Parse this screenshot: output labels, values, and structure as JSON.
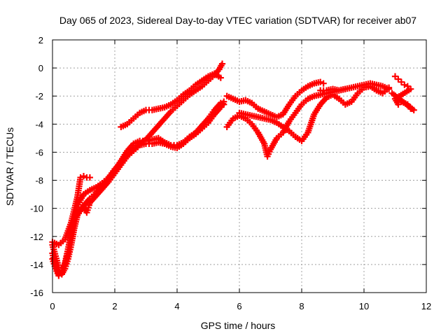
{
  "chart_data": {
    "type": "scatter",
    "title": "Day 065 of 2023, Sidereal Day-to-day VTEC variation (SDTVAR) for receiver ab07",
    "xlabel": "GPS time / hours",
    "ylabel": "SDTVAR / TECUs",
    "xlim": [
      0,
      12
    ],
    "ylim": [
      -16,
      2
    ],
    "xticks": [
      0,
      2,
      4,
      6,
      8,
      10,
      12
    ],
    "yticks": [
      -16,
      -14,
      -12,
      -10,
      -8,
      -6,
      -4,
      -2,
      0,
      2
    ],
    "grid": true,
    "legend": "none",
    "marker": "plus",
    "color": "#ff0000",
    "series": [
      {
        "values": [
          [
            0.0,
            -12.6
          ],
          [
            0.1,
            -13.4
          ],
          [
            0.2,
            -14.2
          ],
          [
            0.3,
            -14.4
          ],
          [
            0.4,
            -14.0
          ],
          [
            0.5,
            -13.2
          ],
          [
            0.6,
            -12.0
          ],
          [
            0.7,
            -10.8
          ],
          [
            0.8,
            -9.9
          ],
          [
            0.9,
            -9.4
          ],
          [
            1.0,
            -9.0
          ],
          [
            1.2,
            -8.7
          ],
          [
            1.4,
            -8.5
          ],
          [
            1.6,
            -8.2
          ],
          [
            1.8,
            -7.8
          ],
          [
            2.0,
            -7.2
          ],
          [
            2.2,
            -6.7
          ],
          [
            2.4,
            -6.2
          ],
          [
            2.6,
            -5.8
          ],
          [
            2.8,
            -5.4
          ],
          [
            3.0,
            -5.1
          ],
          [
            3.2,
            -4.6
          ],
          [
            3.4,
            -4.1
          ],
          [
            3.6,
            -3.6
          ],
          [
            3.8,
            -3.1
          ],
          [
            4.0,
            -2.7
          ],
          [
            4.2,
            -2.3
          ],
          [
            4.4,
            -1.9
          ],
          [
            4.6,
            -1.6
          ],
          [
            4.8,
            -1.3
          ],
          [
            5.0,
            -0.9
          ],
          [
            5.2,
            -0.5
          ],
          [
            5.35,
            -0.1
          ],
          [
            5.45,
            0.3
          ]
        ]
      },
      {
        "values": [
          [
            0.0,
            -13.2
          ],
          [
            0.1,
            -14.0
          ],
          [
            0.2,
            -14.7
          ],
          [
            0.3,
            -14.7
          ],
          [
            0.4,
            -14.3
          ],
          [
            0.5,
            -13.6
          ],
          [
            0.6,
            -12.6
          ],
          [
            0.7,
            -11.4
          ],
          [
            0.8,
            -10.5
          ],
          [
            1.0,
            -9.8
          ],
          [
            1.2,
            -9.3
          ],
          [
            1.4,
            -8.9
          ],
          [
            1.6,
            -8.4
          ],
          [
            1.8,
            -7.9
          ],
          [
            2.0,
            -7.3
          ],
          [
            2.2,
            -6.6
          ],
          [
            2.4,
            -5.9
          ],
          [
            2.6,
            -5.4
          ],
          [
            2.8,
            -5.2
          ],
          [
            3.0,
            -5.2
          ],
          [
            3.2,
            -5.1
          ],
          [
            3.4,
            -5.0
          ],
          [
            3.6,
            -5.3
          ],
          [
            3.8,
            -5.5
          ],
          [
            4.0,
            -5.5
          ],
          [
            4.2,
            -5.3
          ],
          [
            4.4,
            -4.9
          ],
          [
            4.6,
            -4.6
          ],
          [
            4.8,
            -4.1
          ],
          [
            5.0,
            -3.6
          ],
          [
            5.2,
            -3.0
          ],
          [
            5.4,
            -2.5
          ],
          [
            5.5,
            -2.6
          ]
        ]
      },
      {
        "values": [
          [
            0.0,
            -13.6
          ],
          [
            0.1,
            -14.3
          ],
          [
            0.2,
            -14.8
          ],
          [
            0.3,
            -14.6
          ],
          [
            0.4,
            -13.9
          ],
          [
            0.5,
            -12.9
          ],
          [
            0.6,
            -11.8
          ],
          [
            0.7,
            -10.8
          ],
          [
            0.8,
            -10.2
          ],
          [
            1.0,
            -9.9
          ],
          [
            1.1,
            -10.3
          ],
          [
            1.2,
            -9.6
          ],
          [
            1.4,
            -9.1
          ],
          [
            1.6,
            -8.6
          ],
          [
            1.8,
            -8.1
          ],
          [
            2.0,
            -7.5
          ],
          [
            2.2,
            -6.9
          ],
          [
            2.4,
            -6.3
          ],
          [
            2.6,
            -5.9
          ],
          [
            2.8,
            -5.5
          ],
          [
            3.0,
            -5.4
          ],
          [
            3.2,
            -5.4
          ],
          [
            3.4,
            -5.3
          ],
          [
            3.6,
            -5.4
          ],
          [
            3.8,
            -5.6
          ],
          [
            4.0,
            -5.7
          ],
          [
            4.2,
            -5.4
          ],
          [
            4.4,
            -5.0
          ],
          [
            4.6,
            -4.7
          ],
          [
            4.8,
            -4.3
          ],
          [
            5.0,
            -3.9
          ],
          [
            5.2,
            -3.3
          ],
          [
            5.4,
            -2.8
          ],
          [
            5.5,
            -2.4
          ]
        ]
      },
      {
        "values": [
          [
            0.0,
            -12.4
          ],
          [
            0.2,
            -12.6
          ],
          [
            0.4,
            -12.2
          ],
          [
            0.6,
            -11.0
          ],
          [
            0.8,
            -9.2
          ],
          [
            0.9,
            -7.8
          ],
          [
            1.0,
            -7.7
          ],
          [
            1.1,
            -7.8
          ],
          [
            1.2,
            -7.8
          ]
        ]
      },
      {
        "values": [
          [
            2.2,
            -4.2
          ],
          [
            2.4,
            -4.0
          ],
          [
            2.6,
            -3.6
          ],
          [
            2.8,
            -3.2
          ],
          [
            3.0,
            -3.0
          ],
          [
            3.2,
            -3.0
          ],
          [
            3.4,
            -2.9
          ],
          [
            3.6,
            -2.8
          ],
          [
            3.8,
            -2.6
          ],
          [
            4.0,
            -2.3
          ],
          [
            4.2,
            -1.9
          ],
          [
            4.4,
            -1.6
          ],
          [
            4.6,
            -1.2
          ],
          [
            4.8,
            -0.9
          ],
          [
            5.0,
            -0.6
          ],
          [
            5.2,
            -0.4
          ],
          [
            5.4,
            -0.7
          ]
        ]
      },
      {
        "values": [
          [
            5.6,
            -2.0
          ],
          [
            5.8,
            -2.2
          ],
          [
            6.0,
            -2.4
          ],
          [
            6.2,
            -2.3
          ],
          [
            6.4,
            -2.5
          ],
          [
            6.6,
            -2.9
          ],
          [
            6.8,
            -3.1
          ],
          [
            7.0,
            -3.3
          ],
          [
            7.2,
            -3.5
          ],
          [
            7.4,
            -3.3
          ],
          [
            7.6,
            -2.6
          ],
          [
            7.8,
            -2.0
          ],
          [
            8.0,
            -1.6
          ],
          [
            8.2,
            -1.3
          ],
          [
            8.4,
            -1.1
          ],
          [
            8.6,
            -1.0
          ],
          [
            8.7,
            -1.1
          ]
        ]
      },
      {
        "values": [
          [
            5.6,
            -4.2
          ],
          [
            5.8,
            -3.6
          ],
          [
            6.0,
            -3.4
          ],
          [
            6.2,
            -3.6
          ],
          [
            6.4,
            -4.0
          ],
          [
            6.6,
            -4.6
          ],
          [
            6.8,
            -5.4
          ],
          [
            6.9,
            -6.3
          ],
          [
            7.0,
            -5.8
          ],
          [
            7.2,
            -5.0
          ],
          [
            7.4,
            -4.6
          ],
          [
            7.6,
            -3.8
          ],
          [
            7.8,
            -3.2
          ],
          [
            8.0,
            -2.6
          ],
          [
            8.2,
            -2.2
          ],
          [
            8.4,
            -2.0
          ],
          [
            8.6,
            -1.9
          ],
          [
            8.8,
            -1.8
          ],
          [
            9.0,
            -1.7
          ],
          [
            9.2,
            -1.6
          ],
          [
            9.4,
            -1.5
          ]
        ]
      },
      {
        "values": [
          [
            6.0,
            -3.2
          ],
          [
            6.2,
            -3.3
          ],
          [
            6.4,
            -3.4
          ],
          [
            6.6,
            -3.5
          ],
          [
            6.8,
            -3.6
          ],
          [
            7.0,
            -3.7
          ],
          [
            7.2,
            -3.9
          ],
          [
            7.4,
            -4.2
          ],
          [
            7.6,
            -4.5
          ],
          [
            7.8,
            -4.9
          ],
          [
            8.0,
            -5.2
          ],
          [
            8.2,
            -4.6
          ],
          [
            8.4,
            -3.3
          ],
          [
            8.6,
            -2.6
          ],
          [
            8.8,
            -2.1
          ],
          [
            9.0,
            -1.9
          ],
          [
            9.2,
            -2.2
          ],
          [
            9.4,
            -2.6
          ],
          [
            9.6,
            -2.4
          ],
          [
            9.8,
            -1.8
          ],
          [
            10.0,
            -1.4
          ],
          [
            10.2,
            -1.3
          ],
          [
            10.4,
            -1.6
          ],
          [
            10.6,
            -1.8
          ],
          [
            10.8,
            -1.4
          ]
        ]
      },
      {
        "values": [
          [
            8.6,
            -1.6
          ],
          [
            8.8,
            -1.6
          ],
          [
            9.0,
            -1.5
          ],
          [
            9.2,
            -1.6
          ],
          [
            9.4,
            -1.5
          ],
          [
            9.6,
            -1.4
          ],
          [
            9.8,
            -1.3
          ],
          [
            10.0,
            -1.2
          ],
          [
            10.2,
            -1.1
          ],
          [
            10.4,
            -1.2
          ],
          [
            10.6,
            -1.3
          ],
          [
            10.8,
            -1.5
          ]
        ]
      },
      {
        "values": [
          [
            11.0,
            -0.6
          ],
          [
            11.1,
            -0.8
          ],
          [
            11.2,
            -1.0
          ],
          [
            11.3,
            -1.2
          ],
          [
            11.4,
            -1.3
          ],
          [
            11.5,
            -1.5
          ],
          [
            11.0,
            -2.2
          ],
          [
            11.1,
            -2.6
          ],
          [
            11.2,
            -2.4
          ],
          [
            11.4,
            -2.6
          ],
          [
            11.5,
            -2.9
          ],
          [
            11.6,
            -3.0
          ],
          [
            10.9,
            -1.8
          ]
        ]
      }
    ]
  }
}
